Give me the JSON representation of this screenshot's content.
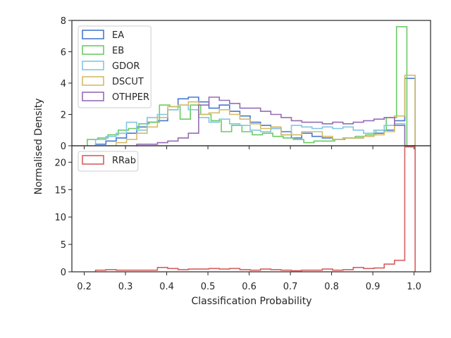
{
  "figure": {
    "ylabel": "Normalised Density",
    "xlabel": "Classification Probability"
  },
  "chart_data": [
    {
      "type": "histogram-step",
      "panel": "top",
      "xlim": [
        0.17,
        1.04
      ],
      "ylim": [
        0,
        8
      ],
      "yticks": [
        0,
        2,
        4,
        6,
        8
      ],
      "legend_position": "upper-left",
      "grid": false,
      "bin_width": 0.025,
      "series": [
        {
          "name": "EA",
          "color": "#4878d0",
          "x": [
            0.24,
            0.265,
            0.29,
            0.315,
            0.34,
            0.365,
            0.39,
            0.415,
            0.44,
            0.465,
            0.49,
            0.515,
            0.54,
            0.565,
            0.59,
            0.615,
            0.64,
            0.665,
            0.69,
            0.715,
            0.74,
            0.765,
            0.79,
            0.815,
            0.84,
            0.865,
            0.89,
            0.915,
            0.94,
            0.965,
            0.99
          ],
          "values": [
            0.1,
            0.3,
            0.5,
            0.8,
            1.2,
            1.5,
            1.6,
            2.3,
            3.0,
            3.1,
            2.8,
            2.4,
            2.6,
            2.2,
            1.9,
            1.5,
            1.3,
            1.1,
            0.9,
            0.5,
            0.8,
            0.6,
            0.5,
            0.4,
            0.5,
            0.5,
            0.6,
            0.8,
            1.0,
            1.6,
            4.3
          ]
        },
        {
          "name": "EB",
          "color": "#6acc64",
          "x": [
            0.22,
            0.245,
            0.27,
            0.295,
            0.32,
            0.345,
            0.37,
            0.395,
            0.42,
            0.445,
            0.47,
            0.495,
            0.52,
            0.545,
            0.57,
            0.595,
            0.62,
            0.645,
            0.67,
            0.695,
            0.72,
            0.745,
            0.77,
            0.795,
            0.82,
            0.845,
            0.87,
            0.895,
            0.92,
            0.945,
            0.97
          ],
          "values": [
            0.4,
            0.5,
            0.7,
            1.0,
            1.1,
            1.4,
            1.5,
            2.6,
            2.5,
            1.7,
            2.6,
            2.0,
            1.6,
            0.9,
            1.3,
            0.9,
            0.7,
            0.8,
            0.6,
            0.5,
            0.4,
            0.2,
            0.3,
            0.3,
            0.4,
            0.5,
            0.6,
            0.7,
            1.0,
            1.8,
            7.6
          ]
        },
        {
          "name": "GDOR",
          "color": "#82c6e2",
          "x": [
            0.24,
            0.265,
            0.29,
            0.315,
            0.34,
            0.365,
            0.39,
            0.415,
            0.44,
            0.465,
            0.49,
            0.515,
            0.54,
            0.565,
            0.59,
            0.615,
            0.64,
            0.665,
            0.69,
            0.715,
            0.74,
            0.765,
            0.79,
            0.815,
            0.84,
            0.865,
            0.89,
            0.915,
            0.94,
            0.965,
            0.99
          ],
          "values": [
            0.4,
            0.6,
            0.8,
            1.5,
            1.0,
            1.8,
            2.0,
            2.3,
            2.6,
            2.3,
            1.8,
            1.5,
            1.7,
            1.4,
            1.3,
            1.0,
            0.9,
            1.1,
            0.7,
            1.3,
            1.2,
            1.1,
            1.2,
            1.1,
            1.2,
            1.0,
            0.8,
            1.0,
            1.3,
            1.4,
            0.0
          ]
        },
        {
          "name": "DSCUT",
          "color": "#d5bb67",
          "x": [
            0.29,
            0.315,
            0.34,
            0.365,
            0.39,
            0.415,
            0.44,
            0.465,
            0.49,
            0.515,
            0.54,
            0.565,
            0.59,
            0.615,
            0.64,
            0.665,
            0.69,
            0.715,
            0.74,
            0.765,
            0.79,
            0.815,
            0.84,
            0.865,
            0.89,
            0.915,
            0.94,
            0.965,
            0.99
          ],
          "values": [
            0.2,
            0.4,
            0.8,
            1.2,
            1.8,
            2.5,
            2.6,
            2.8,
            2.0,
            2.1,
            2.3,
            2.0,
            1.7,
            1.4,
            1.1,
            1.2,
            0.7,
            0.7,
            0.9,
            0.9,
            0.6,
            0.4,
            0.5,
            0.5,
            0.6,
            0.7,
            0.9,
            1.9,
            4.5
          ]
        },
        {
          "name": "OTHPER",
          "color": "#956cb4",
          "x": [
            0.34,
            0.365,
            0.39,
            0.415,
            0.44,
            0.465,
            0.49,
            0.515,
            0.54,
            0.565,
            0.59,
            0.615,
            0.64,
            0.665,
            0.69,
            0.715,
            0.74,
            0.765,
            0.79,
            0.815,
            0.84,
            0.865,
            0.89,
            0.915,
            0.94,
            0.965,
            0.99
          ],
          "values": [
            0.1,
            0.1,
            0.2,
            0.3,
            0.5,
            0.8,
            2.6,
            3.1,
            2.9,
            2.7,
            2.4,
            2.4,
            2.2,
            2.0,
            1.8,
            1.6,
            1.5,
            1.5,
            1.4,
            1.5,
            1.4,
            1.5,
            1.6,
            1.7,
            1.8,
            1.3,
            0.0
          ]
        }
      ]
    },
    {
      "type": "histogram-step",
      "panel": "bottom",
      "xlim": [
        0.17,
        1.04
      ],
      "ylim": [
        0,
        23
      ],
      "yticks": [
        0,
        5,
        10,
        15,
        20
      ],
      "xticks": [
        0.2,
        0.3,
        0.4,
        0.5,
        0.6,
        0.7,
        0.8,
        0.9,
        1.0
      ],
      "xtick_labels": [
        "0.2",
        "0.3",
        "0.4",
        "0.5",
        "0.6",
        "0.7",
        "0.8",
        "0.9",
        "1.0"
      ],
      "legend_position": "upper-left",
      "grid": false,
      "bin_width": 0.025,
      "series": [
        {
          "name": "RRab",
          "color": "#d65f5f",
          "x": [
            0.24,
            0.265,
            0.29,
            0.315,
            0.34,
            0.365,
            0.39,
            0.415,
            0.44,
            0.465,
            0.49,
            0.515,
            0.54,
            0.565,
            0.59,
            0.615,
            0.64,
            0.665,
            0.69,
            0.715,
            0.74,
            0.765,
            0.79,
            0.815,
            0.84,
            0.865,
            0.89,
            0.915,
            0.94,
            0.965,
            0.99
          ],
          "values": [
            0.3,
            0.4,
            0.3,
            0.3,
            0.3,
            0.3,
            0.8,
            0.6,
            0.4,
            0.5,
            0.5,
            0.6,
            0.5,
            0.6,
            0.4,
            0.3,
            0.5,
            0.4,
            0.3,
            0.2,
            0.3,
            0.3,
            0.5,
            0.3,
            0.4,
            0.8,
            0.6,
            0.7,
            1.4,
            2.1,
            22.8
          ]
        }
      ]
    }
  ]
}
